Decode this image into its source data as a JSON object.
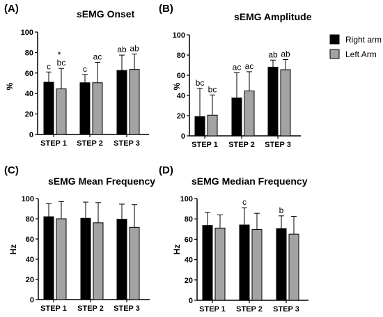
{
  "legend": [
    {
      "name": "Right arm",
      "color": "#000000"
    },
    {
      "name": "Left Arm",
      "color": "#a3a3a3"
    }
  ],
  "chart_data": [
    {
      "type": "bar",
      "panel": "(A)",
      "title": "sEMG Onset",
      "ylabel": "%",
      "ylim": [
        0,
        100
      ],
      "yticks": [
        0,
        20,
        40,
        60,
        80,
        100
      ],
      "categories": [
        "STEP 1",
        "STEP 2",
        "STEP 3"
      ],
      "series": [
        {
          "name": "Right arm",
          "color": "#000000",
          "values": [
            51,
            50.5,
            62.5
          ],
          "error": [
            10,
            8,
            15
          ],
          "labels": [
            "c",
            "c",
            "ab"
          ]
        },
        {
          "name": "Left Arm",
          "color": "#a3a3a3",
          "values": [
            44.5,
            50.5,
            63.5
          ],
          "error": [
            20,
            20,
            15
          ],
          "labels": [
            "bc",
            "ac",
            "ab"
          ]
        }
      ],
      "annotations": [
        {
          "text": "*",
          "category": "STEP 1",
          "series": "Left Arm"
        }
      ]
    },
    {
      "type": "bar",
      "panel": "(B)",
      "title": "sEMG Amplitude",
      "ylabel": "%",
      "ylim": [
        0,
        100
      ],
      "yticks": [
        0,
        20,
        40,
        60,
        80,
        100
      ],
      "categories": [
        "STEP 1",
        "STEP 2",
        "STEP 3"
      ],
      "series": [
        {
          "name": "Right arm",
          "color": "#000000",
          "values": [
            19,
            37.5,
            68
          ],
          "error": [
            28,
            25,
            7
          ],
          "labels": [
            "bc",
            "ac",
            "ab"
          ]
        },
        {
          "name": "Left Arm",
          "color": "#a3a3a3",
          "values": [
            20.5,
            44.5,
            65.5
          ],
          "error": [
            20,
            19,
            10
          ],
          "labels": [
            "bc",
            "ac",
            "ab"
          ]
        }
      ]
    },
    {
      "type": "bar",
      "panel": "(C)",
      "title": "sEMG Mean Frequency",
      "ylabel": "Hz",
      "ylim": [
        0,
        100
      ],
      "yticks": [
        0,
        20,
        40,
        60,
        80,
        100
      ],
      "categories": [
        "STEP 1",
        "STEP 2",
        "STEP 3"
      ],
      "series": [
        {
          "name": "Right arm",
          "color": "#000000",
          "values": [
            82,
            80.5,
            79.5
          ],
          "error": [
            13,
            16,
            15
          ],
          "labels": [
            "",
            "",
            ""
          ]
        },
        {
          "name": "Left Arm",
          "color": "#a3a3a3",
          "values": [
            80,
            76,
            71.5
          ],
          "error": [
            17,
            20,
            22.5
          ],
          "labels": [
            "",
            "",
            ""
          ]
        }
      ]
    },
    {
      "type": "bar",
      "panel": "(D)",
      "title": "sEMG Median Frequency",
      "ylabel": "Hz",
      "ylim": [
        0,
        100
      ],
      "yticks": [
        0,
        20,
        40,
        60,
        80,
        100
      ],
      "categories": [
        "STEP 1",
        "STEP 2",
        "STEP 3"
      ],
      "series": [
        {
          "name": "Right arm",
          "color": "#000000",
          "values": [
            73.5,
            74,
            70.5
          ],
          "error": [
            13,
            17,
            12.5
          ],
          "labels": [
            "",
            "c",
            "b"
          ]
        },
        {
          "name": "Left Arm",
          "color": "#a3a3a3",
          "values": [
            71,
            69.5,
            65
          ],
          "error": [
            13,
            16,
            17.5
          ],
          "labels": [
            "",
            "",
            ""
          ]
        }
      ]
    }
  ]
}
